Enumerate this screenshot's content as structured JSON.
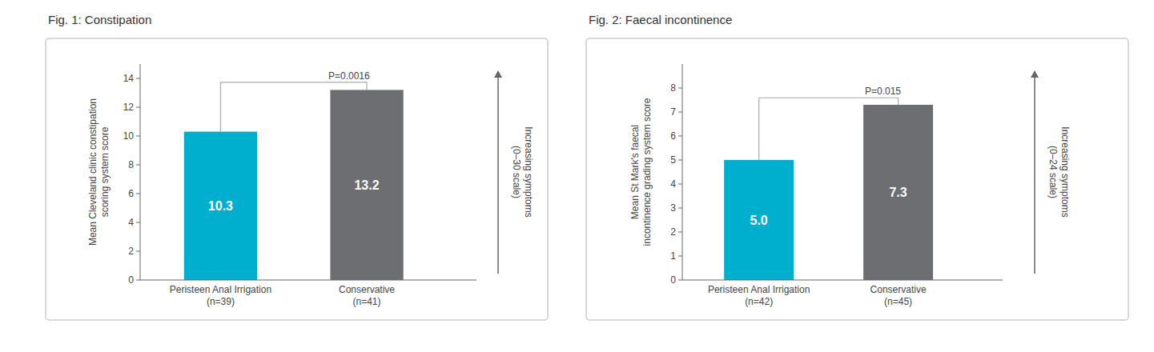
{
  "chart_data": [
    {
      "type": "bar",
      "title": "Fig. 1: Constipation",
      "y_label": "Mean Cleveland clinic constipation\nscoring system score",
      "categories": [
        "Peristeen Anal Irrigation\n(n=39)",
        "Conservative\n(n=41)"
      ],
      "values": [
        10.3,
        13.2
      ],
      "value_labels": [
        "10.3",
        "13.2"
      ],
      "colors": [
        "#00AECD",
        "#6D6E71"
      ],
      "ylim": [
        0,
        15
      ],
      "yticks": [
        0,
        2,
        4,
        6,
        8,
        10,
        12,
        14
      ],
      "grid": false,
      "data_labels": true,
      "p_value": "P=0.0016",
      "arrow_label": "Increasing symptoms\n(0–30 scale)"
    },
    {
      "type": "bar",
      "title": "Fig. 2: Faecal incontinence",
      "y_label": "Mean St Mark's faecal\nincontinence grading system score",
      "categories": [
        "Peristeen Anal Irrigation\n(n=42)",
        "Conservative\n(n=45)"
      ],
      "values": [
        5.0,
        7.3
      ],
      "value_labels": [
        "5.0",
        "7.3"
      ],
      "colors": [
        "#00AECD",
        "#6D6E71"
      ],
      "ylim": [
        0,
        9
      ],
      "yticks": [
        0,
        1,
        2,
        3,
        4,
        5,
        6,
        7,
        8
      ],
      "grid": false,
      "data_labels": true,
      "p_value": "P=0.015",
      "arrow_label": "Increasing symptoms\n(0–24 scale)"
    }
  ]
}
